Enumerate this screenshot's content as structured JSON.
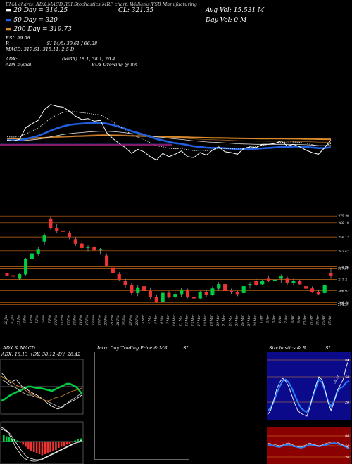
{
  "header": {
    "top_line": "EMA charts, ADX,MACD,RSI,Stochastics MRF chart, Williams,VSB Manufacturing",
    "ema20": "20 Day = 314.25",
    "ema50": "50 Day = 320",
    "ema200": "200 Day = 319.73",
    "close": "CL: 321.35",
    "avg_vol": "Avg Vol: 15.531 M",
    "day_vol": "Day Vol: 0  M",
    "rsi": "RSI: 59.08",
    "si": "SI 14/5: 39.61 / 66.28",
    "macd": "MACD: 317.61, 315.11, 2.5 D",
    "adx": "ADX: ",
    "adx_vals": "(MGR) 18.1, 38.1, 26.4",
    "adx_signal": "ADX  signal:",
    "adx_signal_val": "BUY Growing @ 8%"
  },
  "panel_titles": {
    "adx_macd": "ADX  & MACD",
    "adx_line": "ADX: 18.13  +DY: 38.12  -DY: 26.42",
    "intraday": "Intra Day Trading Price  & MR",
    "intraday_si": "SI",
    "stoch": "Stochastics & R",
    "stoch_si": "SI",
    "stoch_labels": [
      "80",
      "50",
      "20"
    ],
    "rsi_labels": [
      "80",
      "50",
      "20"
    ],
    "stoch_val": "39.61",
    "stoch_val2": "66.28"
  },
  "colors": {
    "up": "#00cc44",
    "down": "#ee3333",
    "ema_blue": "#1f5fe0",
    "ema_orange": "#d98a2b",
    "level": "#c86a1a",
    "rsi_bg": "#8b0000",
    "stoch_bg": "#0a0a8a"
  },
  "chart_data": {
    "type": "candlestick",
    "x": [
      "28 Jan",
      "30 Jan",
      "31 Jan",
      "3 Feb",
      "4 Feb",
      "5 Feb",
      "6 Feb",
      "7 Feb",
      "10 Feb",
      "11 Feb",
      "12 Feb",
      "13 Feb",
      "14 Feb",
      "17 Feb",
      "18 Feb",
      "19 Feb",
      "20 Feb",
      "21 Feb",
      "24 Feb",
      "25 Feb",
      "27 Feb",
      "28 Feb",
      "3 Mar",
      "4 Mar",
      "5 Mar",
      "6 Mar",
      "7 Mar",
      "10 Mar",
      "11 Mar",
      "12 Mar",
      "13 Mar",
      "17 Mar",
      "18 Mar",
      "19 Mar",
      "20 Mar",
      "21 Mar",
      "24 Mar",
      "25 Mar",
      "26 Mar",
      "27 Mar",
      "28 Mar",
      "1 Apr",
      "2 Apr",
      "3 Apr",
      "4 Apr",
      "7 Apr",
      "8 Apr",
      "9 Apr",
      "10 Apr",
      "11 Apr",
      "15 Apr",
      "16 Apr",
      "17 Apr"
    ],
    "candles": [
      [
        323,
        323,
        321,
        321
      ],
      [
        321,
        321,
        319,
        320
      ],
      [
        318,
        323,
        317,
        322
      ],
      [
        322,
        337,
        321,
        336
      ],
      [
        336,
        343,
        334,
        341
      ],
      [
        341,
        347,
        339,
        345
      ],
      [
        352,
        360,
        349,
        358
      ],
      [
        373,
        375,
        363,
        364
      ],
      [
        364,
        368,
        360,
        362
      ],
      [
        362,
        365,
        359,
        361
      ],
      [
        360,
        362,
        354,
        356
      ],
      [
        354,
        356,
        348,
        350
      ],
      [
        350,
        352,
        345,
        346
      ],
      [
        346,
        349,
        343,
        347
      ],
      [
        347,
        348,
        343,
        344
      ],
      [
        344,
        346,
        340,
        345
      ],
      [
        339,
        341,
        329,
        330
      ],
      [
        328,
        330,
        322,
        323
      ],
      [
        322,
        324,
        316,
        317
      ],
      [
        316,
        318,
        310,
        312
      ],
      [
        312,
        314,
        303,
        305
      ],
      [
        305,
        312,
        302,
        310
      ],
      [
        311,
        313,
        305,
        307
      ],
      [
        307,
        310,
        299,
        301
      ],
      [
        301,
        303,
        296,
        297
      ],
      [
        297,
        306,
        296,
        305
      ],
      [
        305,
        307,
        300,
        301
      ],
      [
        301,
        306,
        299,
        304
      ],
      [
        304,
        310,
        301,
        308
      ],
      [
        308,
        309,
        300,
        301
      ],
      [
        301,
        303,
        298,
        300
      ],
      [
        300,
        307,
        299,
        306
      ],
      [
        306,
        308,
        301,
        303
      ],
      [
        303,
        311,
        302,
        309
      ],
      [
        309,
        315,
        307,
        313
      ],
      [
        313,
        314,
        305,
        307
      ],
      [
        307,
        309,
        304,
        306
      ],
      [
        306,
        307,
        302,
        304
      ],
      [
        305,
        312,
        304,
        311
      ],
      [
        312,
        315,
        309,
        313
      ],
      [
        316,
        318,
        311,
        312
      ],
      [
        313,
        317,
        312,
        316
      ],
      [
        318,
        321,
        315,
        316
      ],
      [
        316,
        320,
        313,
        317
      ],
      [
        318,
        322,
        314,
        320
      ],
      [
        318,
        320,
        312,
        314
      ],
      [
        314,
        318,
        312,
        316
      ],
      [
        316,
        317,
        312,
        313
      ],
      [
        311,
        312,
        308,
        309
      ],
      [
        309,
        311,
        305,
        306
      ],
      [
        306,
        308,
        303,
        304
      ],
      [
        305,
        313,
        304,
        312
      ],
      [
        323,
        328,
        318,
        321
      ]
    ],
    "levels": [
      375.39,
      369.19,
      356.13,
      343.47,
      328.96,
      327.68,
      317.3,
      306.92,
      296.58,
      296.24,
      294.34
    ],
    "ylim": [
      290,
      380
    ]
  }
}
